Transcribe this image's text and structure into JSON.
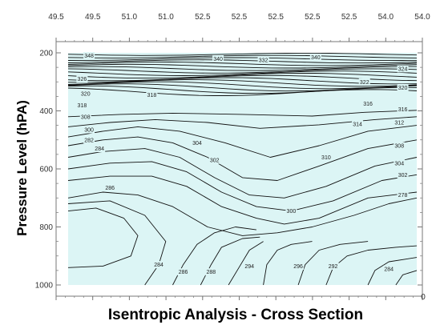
{
  "chart_data": {
    "type": "contour",
    "title": "",
    "xlabel": "Isentropic Analysis - Cross Section",
    "ylabel": "Pressure Level (hPA)",
    "x_ticks": [
      "49.5",
      "49.5",
      "51.0",
      "51.0",
      "52.5",
      "52.5",
      "52.5",
      "52.5",
      "52.5",
      "54.0",
      "54.0"
    ],
    "y_ticks": [
      200,
      400,
      600,
      800,
      1000
    ],
    "ylim": [
      1000,
      200
    ],
    "right_corner_label": "0",
    "grid": false,
    "colors": {
      "background": "#dcf5f5",
      "contour": "#111111",
      "frame": "#777777"
    },
    "contour_labels": [
      {
        "text": "348",
        "x": 0.06,
        "p": 210
      },
      {
        "text": "340",
        "x": 0.43,
        "p": 220
      },
      {
        "text": "332",
        "x": 0.56,
        "p": 225
      },
      {
        "text": "340",
        "x": 0.71,
        "p": 215
      },
      {
        "text": "324",
        "x": 0.96,
        "p": 255
      },
      {
        "text": "326",
        "x": 0.04,
        "p": 290
      },
      {
        "text": "322",
        "x": 0.85,
        "p": 300
      },
      {
        "text": "320",
        "x": 0.96,
        "p": 320
      },
      {
        "text": "320",
        "x": 0.05,
        "p": 340
      },
      {
        "text": "318",
        "x": 0.24,
        "p": 345
      },
      {
        "text": "318",
        "x": 0.04,
        "p": 380
      },
      {
        "text": "316",
        "x": 0.86,
        "p": 375
      },
      {
        "text": "316",
        "x": 0.96,
        "p": 395
      },
      {
        "text": "308",
        "x": 0.05,
        "p": 420
      },
      {
        "text": "300",
        "x": 0.06,
        "p": 465
      },
      {
        "text": "314",
        "x": 0.83,
        "p": 445
      },
      {
        "text": "312",
        "x": 0.95,
        "p": 440
      },
      {
        "text": "282",
        "x": 0.06,
        "p": 500
      },
      {
        "text": "284",
        "x": 0.09,
        "p": 530
      },
      {
        "text": "304",
        "x": 0.37,
        "p": 510
      },
      {
        "text": "302",
        "x": 0.42,
        "p": 570
      },
      {
        "text": "308",
        "x": 0.95,
        "p": 520
      },
      {
        "text": "310",
        "x": 0.74,
        "p": 560
      },
      {
        "text": "304",
        "x": 0.95,
        "p": 580
      },
      {
        "text": "302",
        "x": 0.96,
        "p": 620
      },
      {
        "text": "286",
        "x": 0.12,
        "p": 665
      },
      {
        "text": "278",
        "x": 0.96,
        "p": 690
      },
      {
        "text": "300",
        "x": 0.64,
        "p": 745
      },
      {
        "text": "284",
        "x": 0.26,
        "p": 930
      },
      {
        "text": "286",
        "x": 0.33,
        "p": 955
      },
      {
        "text": "288",
        "x": 0.41,
        "p": 955
      },
      {
        "text": "294",
        "x": 0.52,
        "p": 935
      },
      {
        "text": "296",
        "x": 0.66,
        "p": 935
      },
      {
        "text": "292",
        "x": 0.76,
        "p": 935
      },
      {
        "text": "284",
        "x": 0.92,
        "p": 945
      }
    ]
  }
}
